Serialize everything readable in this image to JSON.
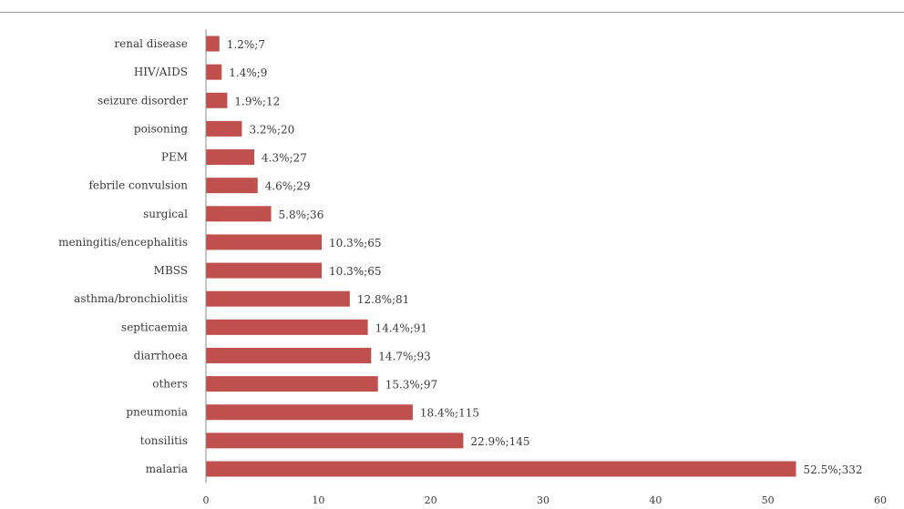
{
  "chart_data": {
    "type": "bar",
    "orientation": "horizontal",
    "categories": [
      "renal disease",
      "HIV/AIDS",
      "seizure disorder",
      "poisoning",
      "PEM",
      "febrile convulsion",
      "surgical",
      "meningitis/encephalitis",
      "MBSS",
      "asthma/bronchiolitis",
      "septicaemia",
      "diarrhoea",
      "others",
      "pneumonia",
      "tonsilitis",
      "malaria"
    ],
    "values": [
      1.2,
      1.4,
      1.9,
      3.2,
      4.3,
      4.6,
      5.8,
      10.3,
      10.3,
      12.8,
      14.4,
      14.7,
      15.3,
      18.4,
      22.9,
      52.5
    ],
    "data_labels": [
      "1.2%;7",
      "1.4%;9",
      "1.9%;12",
      "3.2%;20",
      "4.3%;27",
      "4.6%;29",
      "5.8%;36",
      "10.3%;65",
      "10.3%;65",
      "12.8%;81",
      "14.4%;91",
      "14.7%;93",
      "15.3%;97",
      "18.4%;115",
      "22.9%;145",
      "52.5%;332"
    ],
    "xlim": [
      0,
      60
    ],
    "xticks": [
      0,
      10,
      20,
      30,
      40,
      50,
      60
    ],
    "grid": false,
    "legend": "none",
    "title": "",
    "xlabel": "",
    "ylabel": "",
    "colors": {
      "bar": "#c0504d",
      "text": "#3a3a3a",
      "axis": "#8c8c8c"
    }
  }
}
